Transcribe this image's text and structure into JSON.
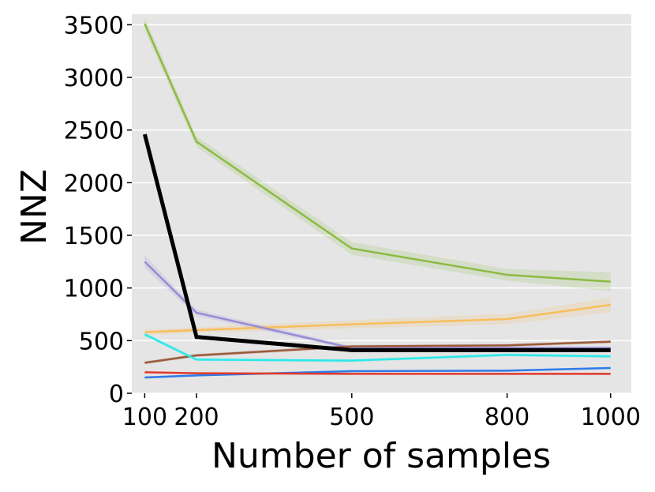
{
  "chart_data": {
    "type": "line",
    "xlabel": "Number of samples",
    "ylabel": "NNZ",
    "x": [
      100,
      200,
      500,
      800,
      1000
    ],
    "xlim": [
      75,
      1040
    ],
    "ylim": [
      0,
      3600
    ],
    "xticks": [
      100,
      200,
      500,
      800,
      1000
    ],
    "yticks": [
      0,
      500,
      1000,
      1500,
      2000,
      2500,
      3000,
      3500
    ],
    "grid": true,
    "background": "#e5e5e5",
    "series": [
      {
        "color": "#8bbb43",
        "width": 2.5,
        "values": [
          3510,
          2390,
          1375,
          1125,
          1060
        ],
        "band": [
          60,
          50,
          60,
          55,
          90
        ]
      },
      {
        "color": "#f8be5c",
        "width": 2.5,
        "values": [
          580,
          600,
          655,
          705,
          840
        ],
        "band": [
          25,
          25,
          40,
          50,
          70
        ]
      },
      {
        "color": "#9a8ad6",
        "width": 2.5,
        "values": [
          1250,
          765,
          430,
          430,
          430
        ],
        "band": [
          60,
          30,
          20,
          15,
          15
        ]
      },
      {
        "color": "#9b5a3a",
        "width": 2.5,
        "values": [
          290,
          360,
          445,
          455,
          490
        ],
        "band": [
          15,
          15,
          15,
          15,
          15
        ]
      },
      {
        "color": "#2ee8e8",
        "width": 2.5,
        "values": [
          560,
          320,
          310,
          365,
          350
        ],
        "band": [
          20,
          15,
          15,
          15,
          15
        ]
      },
      {
        "color": "#2f7be8",
        "width": 2.5,
        "values": [
          150,
          170,
          210,
          215,
          240
        ],
        "band": [
          10,
          10,
          10,
          10,
          10
        ]
      },
      {
        "color": "#e0392b",
        "width": 2.5,
        "values": [
          200,
          190,
          185,
          185,
          185
        ],
        "band": [
          5,
          5,
          5,
          5,
          5
        ]
      },
      {
        "color": "#000000",
        "width": 5,
        "values": [
          2460,
          535,
          410,
          410,
          410
        ],
        "band": [
          0,
          0,
          0,
          0,
          0
        ]
      }
    ]
  }
}
